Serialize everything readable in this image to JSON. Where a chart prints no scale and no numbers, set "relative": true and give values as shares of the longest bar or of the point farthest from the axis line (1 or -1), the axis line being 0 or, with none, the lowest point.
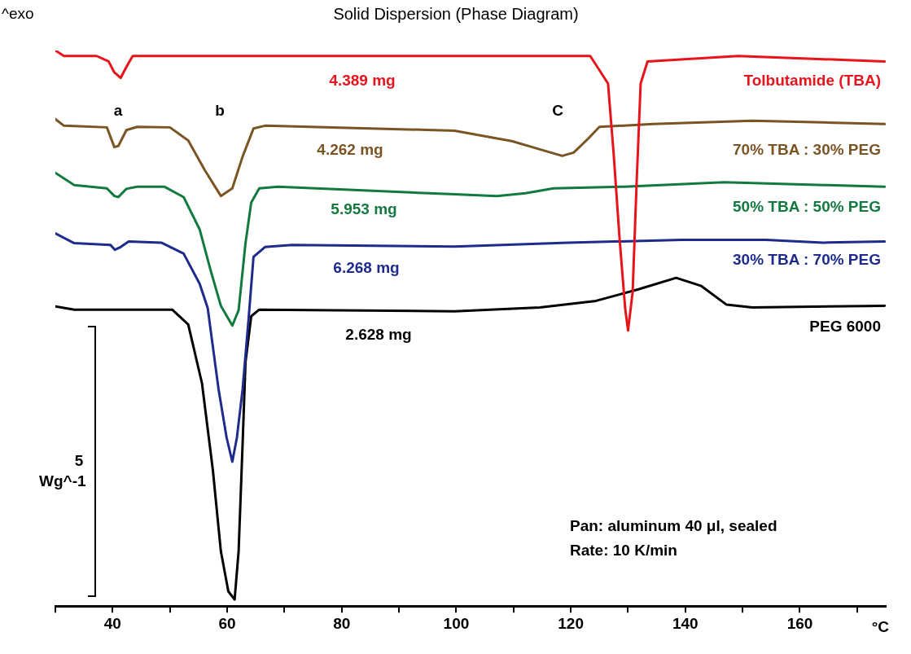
{
  "chart_data": {
    "type": "line",
    "title": "Solid Dispersion (Phase Diagram)",
    "xlabel": "°C",
    "relative": true,
    "xlim": [
      30,
      175
    ],
    "xticks": [
      {
        "value": 30,
        "label": null
      },
      40,
      {
        "value": 50,
        "label": null
      },
      60,
      {
        "value": 70,
        "label": null
      },
      80,
      {
        "value": 90,
        "label": null
      },
      100,
      {
        "value": 110,
        "label": null
      },
      120,
      {
        "value": 130,
        "label": null
      },
      140,
      {
        "value": 150,
        "label": null
      },
      160,
      {
        "value": 170,
        "label": null
      }
    ],
    "series": [
      {
        "name": "Tolbutamide (TBA)",
        "color": "#e8141b",
        "x": [
          30,
          31.5,
          37.2,
          39.3,
          40.3,
          41.4,
          42.4,
          43.5,
          48.5,
          91.2,
          119.6,
          123.4,
          126.5,
          127.5,
          128.5,
          129.5,
          130,
          130.8,
          131.5,
          132.2,
          133.4,
          149.2,
          174.8
        ],
        "values": [
          1.0,
          0.99,
          0.99,
          0.98,
          0.96,
          0.95,
          0.97,
          0.99,
          0.99,
          0.99,
          0.99,
          0.99,
          0.94,
          0.81,
          0.66,
          0.53,
          0.49,
          0.56,
          0.76,
          0.94,
          0.98,
          0.99,
          0.98
        ]
      },
      {
        "name": "70% TBA : 30% PEG",
        "color": "#7b5424",
        "x": [
          30,
          31.5,
          39,
          40.3,
          41,
          42.4,
          44.3,
          50,
          53.2,
          56.1,
          58.9,
          60.9,
          62.7,
          64.6,
          66.6,
          99.7,
          109.7,
          114.6,
          118.5,
          120.5,
          123,
          125,
          134.4,
          151.7,
          164.1,
          174.8
        ],
        "values": [
          0.875,
          0.863,
          0.86,
          0.824,
          0.826,
          0.855,
          0.861,
          0.86,
          0.836,
          0.782,
          0.735,
          0.749,
          0.807,
          0.858,
          0.863,
          0.854,
          0.835,
          0.82,
          0.808,
          0.814,
          0.839,
          0.861,
          0.866,
          0.872,
          0.869,
          0.866
        ]
      },
      {
        "name": "50% TBA : 50% PEG",
        "color": "#137a3f",
        "x": [
          30,
          33.3,
          39,
          40.3,
          41,
          42.4,
          44.3,
          49,
          52.4,
          55.2,
          57.1,
          58.9,
          60.9,
          62,
          63.2,
          64.2,
          65.6,
          68.9,
          99.7,
          107.1,
          112.1,
          117,
          129.4,
          146.8,
          164.1,
          174.8
        ],
        "values": [
          0.777,
          0.755,
          0.749,
          0.735,
          0.733,
          0.748,
          0.752,
          0.752,
          0.733,
          0.674,
          0.6,
          0.535,
          0.499,
          0.527,
          0.649,
          0.723,
          0.749,
          0.752,
          0.738,
          0.735,
          0.74,
          0.749,
          0.752,
          0.76,
          0.755,
          0.752
        ]
      },
      {
        "name": "30% TBA : 70% PEG",
        "color": "#1e2b8c",
        "x": [
          30,
          33.3,
          39.6,
          40.4,
          41.4,
          42.8,
          48.5,
          52.4,
          55.2,
          56.6,
          58.5,
          59.9,
          60.9,
          61.7,
          62.7,
          63.7,
          64.6,
          66.6,
          71.3,
          99.7,
          119.5,
          139.4,
          154.1,
          164.1,
          174.8
        ],
        "values": [
          0.667,
          0.649,
          0.646,
          0.637,
          0.642,
          0.652,
          0.65,
          0.63,
          0.575,
          0.531,
          0.383,
          0.295,
          0.251,
          0.295,
          0.383,
          0.506,
          0.624,
          0.642,
          0.646,
          0.643,
          0.65,
          0.655,
          0.655,
          0.65,
          0.652
        ]
      },
      {
        "name": "PEG 6000",
        "color": "#000000",
        "x": [
          30,
          33.3,
          49,
          50.4,
          53.2,
          55.6,
          57.5,
          58.9,
          60.2,
          61.3,
          62,
          62.7,
          63.2,
          64.2,
          65.6,
          99.7,
          114.6,
          124.4,
          131.8,
          138.4,
          142.8,
          147.2,
          151.7,
          174.8
        ],
        "values": [
          0.534,
          0.528,
          0.528,
          0.528,
          0.501,
          0.394,
          0.236,
          0.088,
          0.015,
          0.0,
          0.088,
          0.285,
          0.432,
          0.516,
          0.528,
          0.525,
          0.532,
          0.544,
          0.565,
          0.586,
          0.571,
          0.537,
          0.532,
          0.535
        ]
      }
    ],
    "annotations": [
      "^exo",
      "4.389 mg",
      "4.262 mg",
      "5.953 mg",
      "6.268 mg",
      "2.628 mg",
      "a",
      "b",
      "C",
      "5",
      "Wg^-1",
      "Pan: aluminum 40 μl, sealed",
      "Rate: 10 K/min"
    ]
  }
}
